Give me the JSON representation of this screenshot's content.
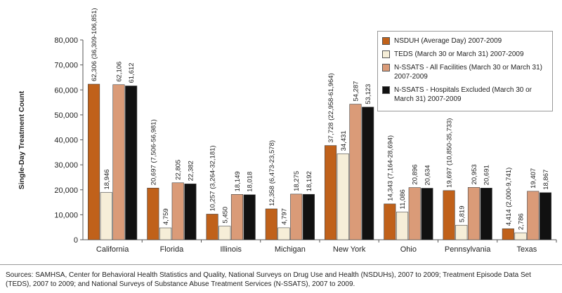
{
  "chart_data": {
    "type": "bar",
    "y_label": "Single-Day Treatment Count",
    "categories": [
      "California",
      "Florida",
      "Illinois",
      "Michigan",
      "New York",
      "Ohio",
      "Pennsylvania",
      "Texas"
    ],
    "series": [
      {
        "name": "NSDUH (Average Day) 2007-2009",
        "color": "#c0611a",
        "values": [
          62306,
          20697,
          10257,
          12358,
          37728,
          14343,
          19697,
          4414
        ],
        "value_labels": [
          "62,306 (36,309-106,851)",
          "20,697 (7,506-56,981)",
          "10,257 (3,264-32,181)",
          "12,358 (6,473-23,578)",
          "37,728 (22,958-61,964)",
          "14,343 (7,164-28,694)",
          "19,697 (10,850-35,733)",
          "4,414 (2,000-9,741)"
        ]
      },
      {
        "name": "TEDS (March 30 or March 31) 2007-2009",
        "color": "#f6eed8",
        "values": [
          18946,
          4759,
          5450,
          4797,
          34431,
          11086,
          5819,
          2786
        ],
        "value_labels": [
          "18,946",
          "4,759",
          "5,450",
          "4,797",
          "34,431",
          "11,086",
          "5,819",
          "2,786"
        ]
      },
      {
        "name": "N-SSATS - All Facilities (March 30 or March 31) 2007-2009",
        "color": "#da9b78",
        "values": [
          62106,
          22805,
          18149,
          18275,
          54287,
          20896,
          20953,
          19407
        ],
        "value_labels": [
          "62,106",
          "22,805",
          "18,149",
          "18,275",
          "54,287",
          "20,896",
          "20,953",
          "19,407"
        ]
      },
      {
        "name": "N-SSATS - Hospitals Excluded (March 30 or March 31) 2007-2009",
        "color": "#111111",
        "values": [
          61612,
          22382,
          18018,
          18192,
          53123,
          20634,
          20691,
          18867
        ],
        "value_labels": [
          "61,612",
          "22,382",
          "18,018",
          "18,192",
          "53,123",
          "20,634",
          "20,691",
          "18,867"
        ]
      }
    ],
    "ylim": [
      0,
      80000
    ],
    "yticks": [
      0,
      {
        "value": 10000,
        "label": "10,000"
      },
      {
        "value": 20000,
        "label": "20,000"
      },
      {
        "value": 30000,
        "label": "30,000"
      },
      {
        "value": 40000,
        "label": "40,000"
      },
      {
        "value": 50000,
        "label": "50,000"
      },
      {
        "value": 60000,
        "label": "60,000"
      },
      {
        "value": 70000,
        "label": "70,000"
      },
      {
        "value": 80000,
        "label": "80,000"
      }
    ],
    "source": "Sources: SAMHSA, Center for Behavioral Health Statistics and Quality, National Surveys on Drug Use and Health (NSDUHs), 2007 to 2009; Treatment Episode Data Set (TEDS), 2007 to 2009; and National Surveys of Substance Abuse Treatment Services (N-SSATS), 2007 to 2009."
  }
}
